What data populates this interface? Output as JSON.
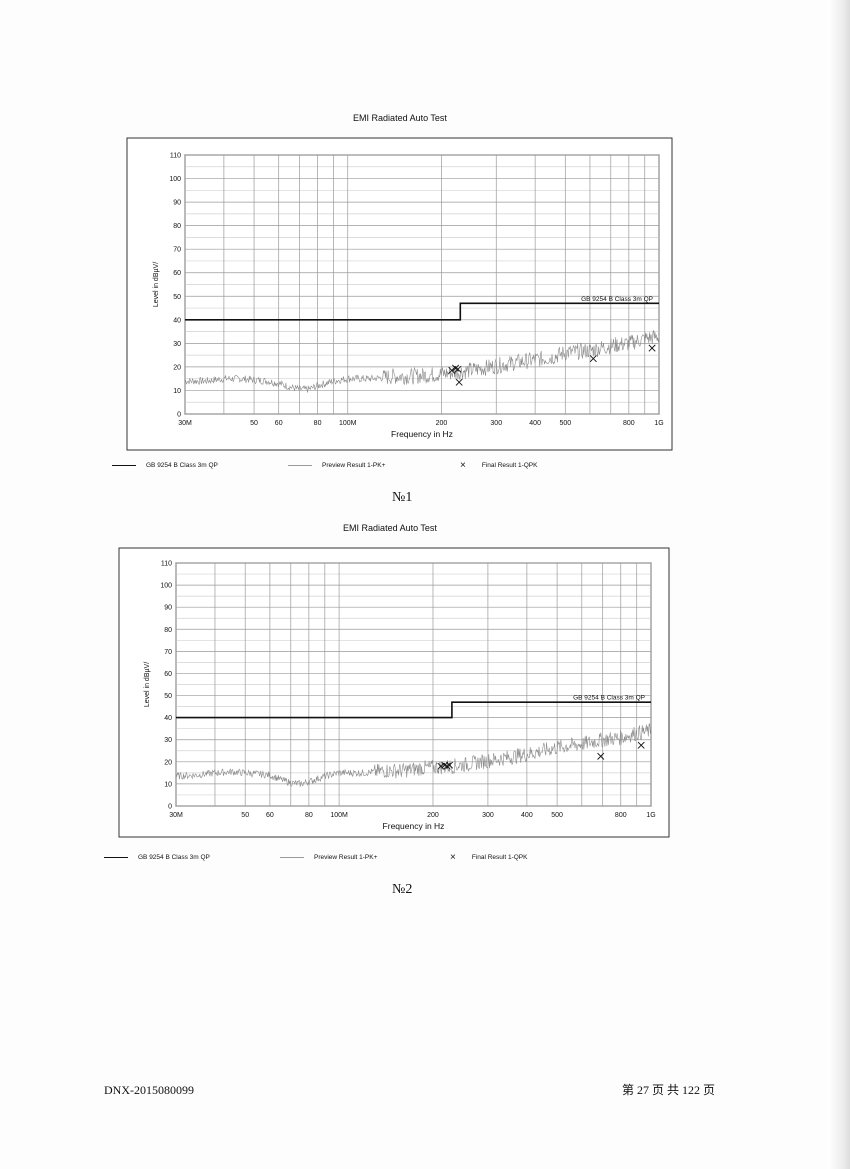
{
  "page": {
    "caption_1": "№1",
    "caption_2": "№2",
    "footer_left": "DNX-2015080099",
    "footer_right": "第 27 页 共 122 页"
  },
  "chart_data": [
    {
      "type": "line",
      "title": "EMI Radiated Auto Test",
      "xlabel": "Frequency in Hz",
      "ylabel": "Level in dBµV/",
      "x_scale": "log",
      "xlim": [
        30,
        1000
      ],
      "ylim": [
        0,
        110
      ],
      "y_ticks": [
        "0",
        "10",
        "20",
        "30",
        "40",
        "50",
        "60",
        "70",
        "80",
        "90",
        "100",
        "110"
      ],
      "x_ticks": [
        {
          "v": 30,
          "label": "30M"
        },
        {
          "v": 50,
          "label": "50"
        },
        {
          "v": 60,
          "label": "60"
        },
        {
          "v": 80,
          "label": "80"
        },
        {
          "v": 100,
          "label": "100M"
        },
        {
          "v": 200,
          "label": "200"
        },
        {
          "v": 300,
          "label": "300"
        },
        {
          "v": 400,
          "label": "400"
        },
        {
          "v": 500,
          "label": "500"
        },
        {
          "v": 800,
          "label": "800"
        },
        {
          "v": 1000,
          "label": "1G"
        }
      ],
      "grid": true,
      "limit_label": "GB 9254 B Class 3m QP",
      "series": [
        {
          "name": "GB 9254 B Class 3m QP",
          "kind": "limit",
          "color": "#111111",
          "x": [
            30,
            230,
            230,
            1000
          ],
          "values": [
            40,
            40,
            47,
            47
          ]
        },
        {
          "name": "Preview Result 1-PK+",
          "kind": "preview",
          "color": "#8a8a8a",
          "x": [
            30,
            35,
            40,
            45,
            50,
            55,
            60,
            65,
            70,
            75,
            80,
            90,
            100,
            120,
            140,
            160,
            180,
            200,
            230,
            260,
            300,
            350,
            400,
            450,
            500,
            600,
            700,
            800,
            900,
            1000
          ],
          "values": [
            14,
            14,
            15,
            15,
            14.5,
            14,
            13,
            11.5,
            10.5,
            10.5,
            12,
            14,
            15,
            15,
            16,
            16,
            16.5,
            17,
            18,
            19,
            20.5,
            22,
            23,
            24,
            26,
            27,
            29,
            30,
            32,
            33
          ]
        },
        {
          "name": "Final Result 1-QPK",
          "kind": "final",
          "color": "#111111",
          "x": [
            216,
            222,
            226,
            228,
            615,
            950
          ],
          "values": [
            18.5,
            19.5,
            19,
            13.5,
            23.5,
            28
          ]
        }
      ],
      "legend": [
        "GB 9254 B Class 3m QP",
        "Preview Result 1-PK+",
        "Final Result 1-QPK"
      ]
    },
    {
      "type": "line",
      "title": "EMI Radiated Auto Test",
      "xlabel": "Frequency in Hz",
      "ylabel": "Level in dBµV/",
      "x_scale": "log",
      "xlim": [
        30,
        1000
      ],
      "ylim": [
        0,
        110
      ],
      "y_ticks": [
        "0",
        "10",
        "20",
        "30",
        "40",
        "50",
        "60",
        "70",
        "80",
        "90",
        "100",
        "110"
      ],
      "x_ticks": [
        {
          "v": 30,
          "label": "30M"
        },
        {
          "v": 50,
          "label": "50"
        },
        {
          "v": 60,
          "label": "60"
        },
        {
          "v": 80,
          "label": "80"
        },
        {
          "v": 100,
          "label": "100M"
        },
        {
          "v": 200,
          "label": "200"
        },
        {
          "v": 300,
          "label": "300"
        },
        {
          "v": 400,
          "label": "400"
        },
        {
          "v": 500,
          "label": "500"
        },
        {
          "v": 800,
          "label": "800"
        },
        {
          "v": 1000,
          "label": "1G"
        }
      ],
      "grid": true,
      "limit_label": "GB 9254 B Class 3m QP",
      "series": [
        {
          "name": "GB 9254 B Class 3m QP",
          "kind": "limit",
          "color": "#111111",
          "x": [
            30,
            230,
            230,
            1000
          ],
          "values": [
            40,
            40,
            47,
            47
          ]
        },
        {
          "name": "Preview Result 1-PK+",
          "kind": "preview",
          "color": "#8a8a8a",
          "x": [
            30,
            35,
            40,
            45,
            50,
            55,
            60,
            65,
            70,
            75,
            80,
            90,
            100,
            120,
            140,
            160,
            180,
            200,
            230,
            260,
            300,
            350,
            400,
            450,
            500,
            600,
            700,
            800,
            900,
            1000
          ],
          "values": [
            13.5,
            14,
            15,
            15.5,
            15,
            14.5,
            14,
            12,
            10.5,
            10,
            11,
            13.5,
            15,
            15,
            16,
            16,
            17,
            17.5,
            18,
            19,
            20.5,
            22,
            23.5,
            25,
            26.5,
            28,
            30,
            31,
            33,
            34
          ]
        },
        {
          "name": "Final Result 1-QPK",
          "kind": "final",
          "color": "#111111",
          "x": [
            212,
            218,
            222,
            226,
            690,
            930
          ],
          "values": [
            18,
            18.5,
            18,
            18.5,
            22.5,
            27.5
          ]
        }
      ],
      "legend": [
        "GB 9254 B Class 3m QP",
        "Preview Result 1-PK+",
        "Final Result 1-QPK"
      ]
    }
  ]
}
